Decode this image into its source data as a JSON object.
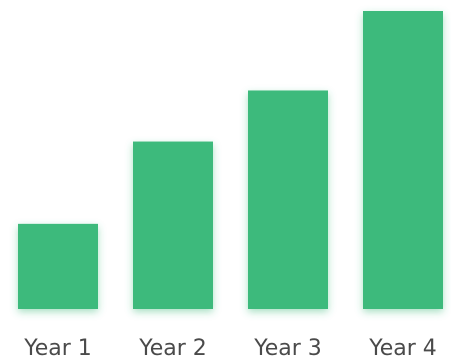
{
  "chart_data": {
    "type": "bar",
    "categories": [
      "Year 1",
      "Year 2",
      "Year 3",
      "Year 4"
    ],
    "values": [
      30,
      59,
      77,
      105
    ],
    "ylim": [
      0,
      105
    ],
    "title": "",
    "xlabel": "",
    "ylabel": "",
    "grid": false,
    "legend": "none",
    "bar_color": "#3dba7b",
    "label_color": "#4a4a4a"
  }
}
